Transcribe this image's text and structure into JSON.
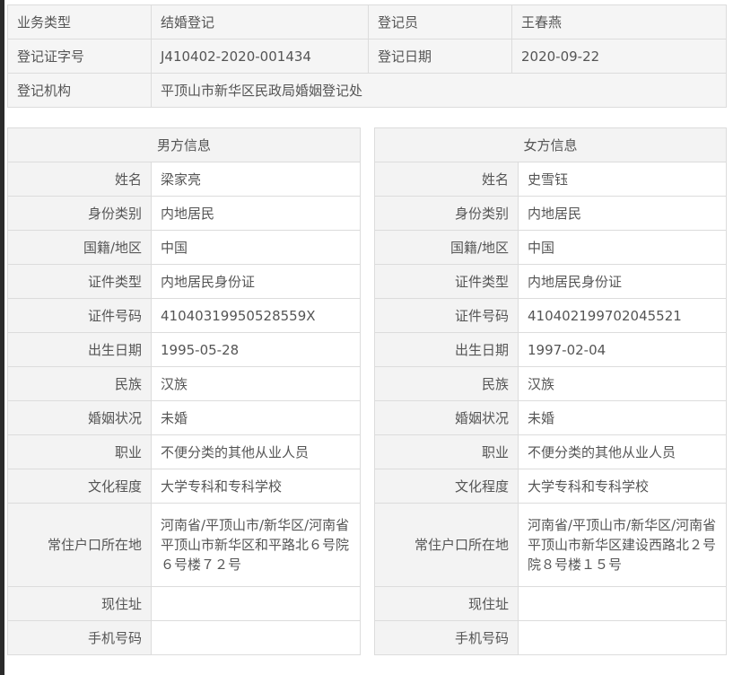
{
  "summary": {
    "business_type_label": "业务类型",
    "business_type": "结婚登记",
    "registrar_label": "登记员",
    "registrar": "王春燕",
    "cert_no_label": "登记证字号",
    "cert_no": "J410402-2020-001434",
    "reg_date_label": "登记日期",
    "reg_date": "2020-09-22",
    "org_label": "登记机构",
    "org": "平顶山市新华区民政局婚姻登记处"
  },
  "labels": [
    "姓名",
    "身份类别",
    "国籍/地区",
    "证件类型",
    "证件号码",
    "出生日期",
    "民族",
    "婚姻状况",
    "职业",
    "文化程度",
    "常住户口所在地",
    "现住址",
    "手机号码"
  ],
  "male": {
    "title": "男方信息",
    "values": [
      "梁家亮",
      "内地居民",
      "中国",
      "内地居民身份证",
      "41040319950528559X",
      "1995-05-28",
      "汉族",
      "未婚",
      "不便分类的其他从业人员",
      "大学专科和专科学校",
      "河南省/平顶山市/新华区/河南省平顶山市新华区和平路北６号院６号楼７２号",
      "",
      ""
    ]
  },
  "female": {
    "title": "女方信息",
    "values": [
      "史雪钰",
      "内地居民",
      "中国",
      "内地居民身份证",
      "410402199702045521",
      "1997-02-04",
      "汉族",
      "未婚",
      "不便分类的其他从业人员",
      "大学专科和专科学校",
      "河南省/平顶山市/新华区/河南省平顶山市新华区建设西路北２号院８号楼１５号",
      "",
      ""
    ]
  }
}
